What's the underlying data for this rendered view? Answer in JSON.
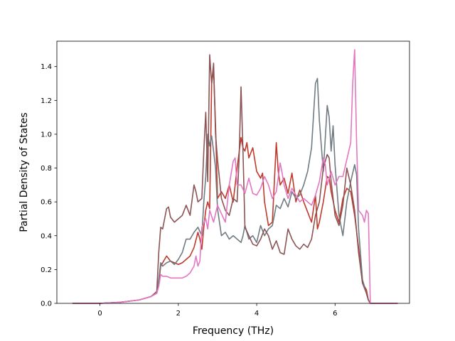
{
  "chart_data": {
    "type": "line",
    "xlabel": "Frequency (THz)",
    "ylabel": "Partial Density of States",
    "xlim": [
      -1.1,
      7.9
    ],
    "ylim": [
      0.0,
      1.55
    ],
    "xticks": [
      "0",
      "2",
      "4",
      "6"
    ],
    "xtick_values": [
      0,
      2,
      4,
      6
    ],
    "yticks": [
      "0.0",
      "0.2",
      "0.4",
      "0.6",
      "0.8",
      "1.0",
      "1.2",
      "1.4"
    ],
    "ytick_values": [
      0.0,
      0.2,
      0.4,
      0.6,
      0.8,
      1.0,
      1.2,
      1.4
    ],
    "grid": false,
    "series": [
      {
        "color": "#c0392b",
        "points": [
          [
            -0.7,
            0.0
          ],
          [
            0.0,
            0.0
          ],
          [
            0.5,
            0.006
          ],
          [
            1.0,
            0.02
          ],
          [
            1.3,
            0.04
          ],
          [
            1.45,
            0.06
          ],
          [
            1.5,
            0.12
          ],
          [
            1.55,
            0.22
          ],
          [
            1.6,
            0.24
          ],
          [
            1.7,
            0.28
          ],
          [
            1.8,
            0.25
          ],
          [
            1.9,
            0.24
          ],
          [
            2.0,
            0.23
          ],
          [
            2.1,
            0.24
          ],
          [
            2.2,
            0.26
          ],
          [
            2.3,
            0.28
          ],
          [
            2.4,
            0.33
          ],
          [
            2.5,
            0.42
          ],
          [
            2.55,
            0.38
          ],
          [
            2.6,
            0.32
          ],
          [
            2.65,
            0.45
          ],
          [
            2.7,
            0.55
          ],
          [
            2.75,
            0.6
          ],
          [
            2.8,
            0.56
          ],
          [
            2.85,
            1.3
          ],
          [
            2.9,
            1.38
          ],
          [
            2.95,
            1.05
          ],
          [
            3.0,
            0.62
          ],
          [
            3.1,
            0.66
          ],
          [
            3.2,
            0.62
          ],
          [
            3.3,
            0.7
          ],
          [
            3.4,
            0.6
          ],
          [
            3.5,
            0.8
          ],
          [
            3.6,
            0.98
          ],
          [
            3.65,
            0.92
          ],
          [
            3.7,
            0.9
          ],
          [
            3.75,
            0.95
          ],
          [
            3.8,
            0.86
          ],
          [
            3.9,
            0.92
          ],
          [
            4.0,
            0.78
          ],
          [
            4.1,
            0.74
          ],
          [
            4.15,
            0.77
          ],
          [
            4.2,
            0.6
          ],
          [
            4.3,
            0.46
          ],
          [
            4.4,
            0.48
          ],
          [
            4.5,
            0.95
          ],
          [
            4.55,
            0.78
          ],
          [
            4.6,
            0.7
          ],
          [
            4.7,
            0.74
          ],
          [
            4.8,
            0.65
          ],
          [
            4.9,
            0.77
          ],
          [
            5.0,
            0.6
          ],
          [
            5.1,
            0.67
          ],
          [
            5.2,
            0.6
          ],
          [
            5.3,
            0.54
          ],
          [
            5.4,
            0.48
          ],
          [
            5.5,
            0.64
          ],
          [
            5.55,
            0.44
          ],
          [
            5.6,
            0.48
          ],
          [
            5.7,
            0.6
          ],
          [
            5.8,
            0.75
          ],
          [
            5.85,
            0.74
          ],
          [
            5.9,
            0.66
          ],
          [
            6.0,
            0.55
          ],
          [
            6.1,
            0.48
          ],
          [
            6.2,
            0.62
          ],
          [
            6.3,
            0.68
          ],
          [
            6.4,
            0.66
          ],
          [
            6.5,
            0.52
          ],
          [
            6.6,
            0.33
          ],
          [
            6.7,
            0.12
          ],
          [
            6.8,
            0.08
          ],
          [
            6.85,
            0.02
          ],
          [
            6.9,
            0.0
          ],
          [
            7.6,
            0.0
          ]
        ]
      },
      {
        "color": "#707b82",
        "points": [
          [
            -0.7,
            0.0
          ],
          [
            0.0,
            0.0
          ],
          [
            0.5,
            0.006
          ],
          [
            1.0,
            0.02
          ],
          [
            1.3,
            0.04
          ],
          [
            1.45,
            0.06
          ],
          [
            1.5,
            0.14
          ],
          [
            1.55,
            0.24
          ],
          [
            1.6,
            0.22
          ],
          [
            1.7,
            0.24
          ],
          [
            1.8,
            0.25
          ],
          [
            1.9,
            0.23
          ],
          [
            2.0,
            0.26
          ],
          [
            2.1,
            0.3
          ],
          [
            2.2,
            0.38
          ],
          [
            2.3,
            0.38
          ],
          [
            2.4,
            0.42
          ],
          [
            2.5,
            0.45
          ],
          [
            2.6,
            0.4
          ],
          [
            2.65,
            0.6
          ],
          [
            2.7,
            0.75
          ],
          [
            2.75,
            1.0
          ],
          [
            2.8,
            0.93
          ],
          [
            2.85,
            0.99
          ],
          [
            2.9,
            0.9
          ],
          [
            2.95,
            0.8
          ],
          [
            3.0,
            0.56
          ],
          [
            3.05,
            0.48
          ],
          [
            3.1,
            0.4
          ],
          [
            3.2,
            0.42
          ],
          [
            3.3,
            0.38
          ],
          [
            3.4,
            0.4
          ],
          [
            3.5,
            0.38
          ],
          [
            3.6,
            0.36
          ],
          [
            3.65,
            0.4
          ],
          [
            3.7,
            0.46
          ],
          [
            3.8,
            0.38
          ],
          [
            3.9,
            0.4
          ],
          [
            4.0,
            0.36
          ],
          [
            4.1,
            0.46
          ],
          [
            4.2,
            0.4
          ],
          [
            4.3,
            0.44
          ],
          [
            4.4,
            0.46
          ],
          [
            4.5,
            0.58
          ],
          [
            4.6,
            0.56
          ],
          [
            4.7,
            0.62
          ],
          [
            4.8,
            0.57
          ],
          [
            4.9,
            0.66
          ],
          [
            5.0,
            0.62
          ],
          [
            5.1,
            0.64
          ],
          [
            5.2,
            0.7
          ],
          [
            5.3,
            0.78
          ],
          [
            5.4,
            0.92
          ],
          [
            5.5,
            1.3
          ],
          [
            5.55,
            1.33
          ],
          [
            5.6,
            1.08
          ],
          [
            5.7,
            0.78
          ],
          [
            5.8,
            1.17
          ],
          [
            5.85,
            1.1
          ],
          [
            5.9,
            0.9
          ],
          [
            5.95,
            1.05
          ],
          [
            6.0,
            0.82
          ],
          [
            6.1,
            0.52
          ],
          [
            6.2,
            0.4
          ],
          [
            6.3,
            0.6
          ],
          [
            6.4,
            0.72
          ],
          [
            6.5,
            0.82
          ],
          [
            6.55,
            0.76
          ],
          [
            6.6,
            0.44
          ],
          [
            6.7,
            0.14
          ],
          [
            6.8,
            0.06
          ],
          [
            6.85,
            0.02
          ],
          [
            6.9,
            0.0
          ],
          [
            7.6,
            0.0
          ]
        ]
      },
      {
        "color": "#8c5454",
        "points": [
          [
            -0.7,
            0.0
          ],
          [
            0.0,
            0.0
          ],
          [
            0.5,
            0.006
          ],
          [
            1.0,
            0.02
          ],
          [
            1.3,
            0.04
          ],
          [
            1.45,
            0.07
          ],
          [
            1.5,
            0.3
          ],
          [
            1.55,
            0.45
          ],
          [
            1.6,
            0.44
          ],
          [
            1.7,
            0.56
          ],
          [
            1.75,
            0.57
          ],
          [
            1.8,
            0.51
          ],
          [
            1.9,
            0.48
          ],
          [
            2.0,
            0.5
          ],
          [
            2.1,
            0.52
          ],
          [
            2.2,
            0.58
          ],
          [
            2.3,
            0.52
          ],
          [
            2.4,
            0.7
          ],
          [
            2.45,
            0.66
          ],
          [
            2.5,
            0.6
          ],
          [
            2.6,
            0.62
          ],
          [
            2.65,
            0.9
          ],
          [
            2.7,
            1.13
          ],
          [
            2.75,
            0.72
          ],
          [
            2.8,
            1.47
          ],
          [
            2.85,
            1.3
          ],
          [
            2.9,
            1.42
          ],
          [
            2.95,
            1.0
          ],
          [
            3.0,
            0.85
          ],
          [
            3.1,
            0.62
          ],
          [
            3.2,
            0.55
          ],
          [
            3.3,
            0.52
          ],
          [
            3.4,
            0.62
          ],
          [
            3.5,
            0.6
          ],
          [
            3.55,
            0.85
          ],
          [
            3.6,
            1.28
          ],
          [
            3.65,
            0.9
          ],
          [
            3.7,
            0.45
          ],
          [
            3.8,
            0.4
          ],
          [
            3.9,
            0.35
          ],
          [
            4.0,
            0.34
          ],
          [
            4.1,
            0.38
          ],
          [
            4.2,
            0.44
          ],
          [
            4.3,
            0.4
          ],
          [
            4.4,
            0.32
          ],
          [
            4.5,
            0.37
          ],
          [
            4.6,
            0.3
          ],
          [
            4.7,
            0.29
          ],
          [
            4.8,
            0.44
          ],
          [
            4.9,
            0.38
          ],
          [
            5.0,
            0.34
          ],
          [
            5.1,
            0.32
          ],
          [
            5.2,
            0.35
          ],
          [
            5.3,
            0.33
          ],
          [
            5.4,
            0.38
          ],
          [
            5.5,
            0.52
          ],
          [
            5.6,
            0.6
          ],
          [
            5.7,
            0.8
          ],
          [
            5.8,
            0.88
          ],
          [
            5.85,
            0.86
          ],
          [
            5.9,
            0.72
          ],
          [
            6.0,
            0.52
          ],
          [
            6.1,
            0.46
          ],
          [
            6.2,
            0.58
          ],
          [
            6.3,
            0.8
          ],
          [
            6.4,
            0.7
          ],
          [
            6.5,
            0.55
          ],
          [
            6.6,
            0.3
          ],
          [
            6.7,
            0.12
          ],
          [
            6.8,
            0.06
          ],
          [
            6.85,
            0.02
          ],
          [
            6.9,
            0.0
          ],
          [
            7.6,
            0.0
          ]
        ]
      },
      {
        "color": "#e377c2",
        "points": [
          [
            -0.7,
            0.0
          ],
          [
            0.0,
            0.0
          ],
          [
            0.5,
            0.006
          ],
          [
            1.0,
            0.02
          ],
          [
            1.3,
            0.04
          ],
          [
            1.45,
            0.06
          ],
          [
            1.5,
            0.1
          ],
          [
            1.55,
            0.17
          ],
          [
            1.6,
            0.16
          ],
          [
            1.7,
            0.16
          ],
          [
            1.8,
            0.15
          ],
          [
            1.9,
            0.15
          ],
          [
            2.0,
            0.15
          ],
          [
            2.1,
            0.15
          ],
          [
            2.2,
            0.16
          ],
          [
            2.3,
            0.18
          ],
          [
            2.4,
            0.22
          ],
          [
            2.45,
            0.28
          ],
          [
            2.5,
            0.22
          ],
          [
            2.55,
            0.25
          ],
          [
            2.6,
            0.45
          ],
          [
            2.7,
            0.5
          ],
          [
            2.75,
            0.44
          ],
          [
            2.8,
            0.55
          ],
          [
            2.9,
            0.48
          ],
          [
            3.0,
            0.58
          ],
          [
            3.1,
            0.53
          ],
          [
            3.2,
            0.48
          ],
          [
            3.3,
            0.7
          ],
          [
            3.4,
            0.84
          ],
          [
            3.45,
            0.86
          ],
          [
            3.5,
            0.7
          ],
          [
            3.6,
            0.7
          ],
          [
            3.7,
            0.65
          ],
          [
            3.8,
            0.74
          ],
          [
            3.9,
            0.65
          ],
          [
            4.0,
            0.64
          ],
          [
            4.1,
            0.68
          ],
          [
            4.2,
            0.75
          ],
          [
            4.3,
            0.7
          ],
          [
            4.4,
            0.62
          ],
          [
            4.5,
            0.66
          ],
          [
            4.6,
            0.83
          ],
          [
            4.65,
            0.77
          ],
          [
            4.7,
            0.7
          ],
          [
            4.8,
            0.62
          ],
          [
            4.9,
            0.68
          ],
          [
            5.0,
            0.64
          ],
          [
            5.1,
            0.6
          ],
          [
            5.2,
            0.62
          ],
          [
            5.3,
            0.6
          ],
          [
            5.4,
            0.58
          ],
          [
            5.5,
            0.64
          ],
          [
            5.6,
            0.72
          ],
          [
            5.7,
            0.86
          ],
          [
            5.75,
            0.82
          ],
          [
            5.8,
            0.7
          ],
          [
            5.9,
            0.78
          ],
          [
            6.0,
            0.7
          ],
          [
            6.1,
            0.75
          ],
          [
            6.2,
            0.75
          ],
          [
            6.3,
            0.85
          ],
          [
            6.4,
            0.95
          ],
          [
            6.45,
            1.3
          ],
          [
            6.5,
            1.5
          ],
          [
            6.55,
            0.95
          ],
          [
            6.6,
            0.55
          ],
          [
            6.7,
            0.52
          ],
          [
            6.75,
            0.48
          ],
          [
            6.8,
            0.55
          ],
          [
            6.85,
            0.53
          ],
          [
            6.9,
            0.0
          ],
          [
            7.6,
            0.0
          ]
        ]
      }
    ]
  }
}
